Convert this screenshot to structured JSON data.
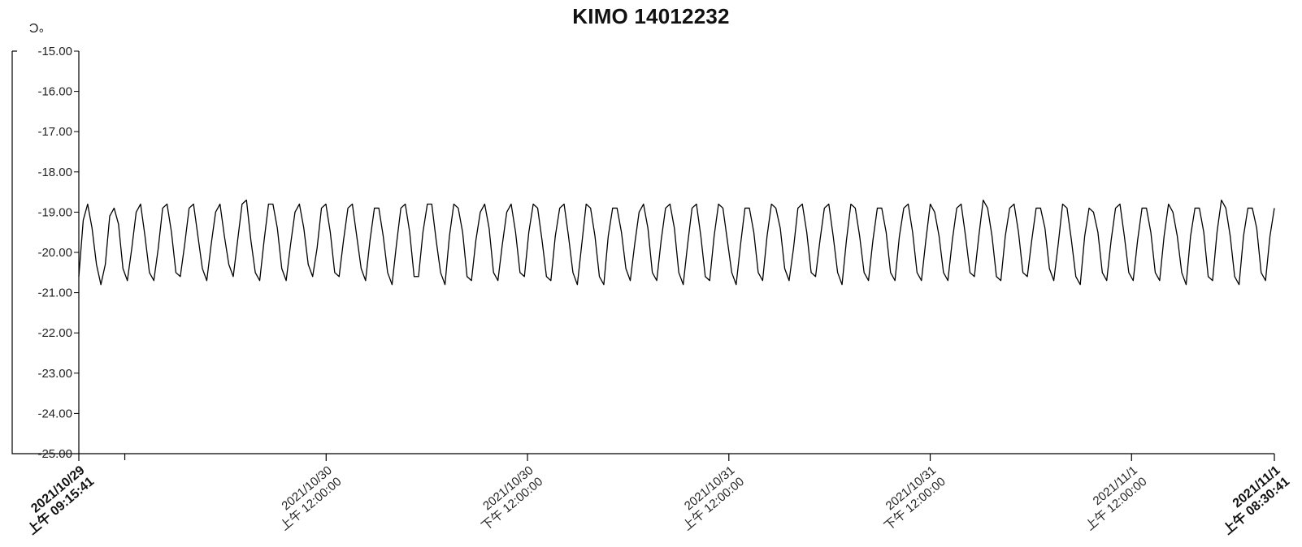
{
  "chart_data": {
    "type": "line",
    "title": "KIMO 14012232",
    "ylabel": "°C",
    "xlabel": "",
    "ylim": [
      -25.0,
      -15.0
    ],
    "yticks": [
      "-15.00",
      "-16.00",
      "-17.00",
      "-18.00",
      "-19.00",
      "-20.00",
      "-21.00",
      "-22.00",
      "-23.00",
      "-24.00",
      "-25.00"
    ],
    "x_range": [
      "2021-10-29T09:15:41",
      "2021-11-01T08:30:41"
    ],
    "x_tick_labels": [
      {
        "t": "2021-10-29T09:15:41",
        "line1": "2021/10/29",
        "line2": "上午 09:15:41",
        "bold": true
      },
      {
        "t": "2021-10-30T00:00:00",
        "line1": "2021/10/30",
        "line2": "上午 12:00:00",
        "bold": false
      },
      {
        "t": "2021-10-30T12:00:00",
        "line1": "2021/10/30",
        "line2": "下午 12:00:00",
        "bold": false
      },
      {
        "t": "2021-10-31T00:00:00",
        "line1": "2021/10/31",
        "line2": "上午 12:00:00",
        "bold": false
      },
      {
        "t": "2021-10-31T12:00:00",
        "line1": "2021/10/31",
        "line2": "下午 12:00:00",
        "bold": false
      },
      {
        "t": "2021-11-01T00:00:00",
        "line1": "2021/11/1",
        "line2": "上午 12:00:00",
        "bold": false
      },
      {
        "t": "2021-11-01T08:30:41",
        "line1": "2021/11/1",
        "line2": "上午 08:30:41",
        "bold": true
      }
    ],
    "minor_ticks": [
      "2021-10-29T12:00:00"
    ],
    "grid": false,
    "series": [
      {
        "color": "#000000",
        "y": [
          -20.6,
          -19.2,
          -18.8,
          -19.4,
          -20.3,
          -20.8,
          -20.3,
          -19.1,
          -18.9,
          -19.3,
          -20.4,
          -20.7,
          -19.9,
          -19.0,
          -18.8,
          -19.6,
          -20.5,
          -20.7,
          -19.9,
          -18.9,
          -18.8,
          -19.5,
          -20.5,
          -20.6,
          -19.8,
          -18.9,
          -18.8,
          -19.6,
          -20.4,
          -20.7,
          -19.8,
          -19.0,
          -18.8,
          -19.6,
          -20.3,
          -20.6,
          -19.7,
          -18.8,
          -18.7,
          -19.7,
          -20.5,
          -20.7,
          -19.7,
          -18.8,
          -18.8,
          -19.4,
          -20.4,
          -20.7,
          -19.8,
          -19.0,
          -18.8,
          -19.4,
          -20.3,
          -20.6,
          -19.9,
          -18.9,
          -18.8,
          -19.5,
          -20.5,
          -20.6,
          -19.7,
          -18.9,
          -18.8,
          -19.6,
          -20.4,
          -20.7,
          -19.7,
          -18.9,
          -18.9,
          -19.6,
          -20.5,
          -20.8,
          -19.8,
          -18.9,
          -18.8,
          -19.5,
          -20.6,
          -20.6,
          -19.5,
          -18.8,
          -18.8,
          -19.7,
          -20.5,
          -20.8,
          -19.6,
          -18.8,
          -18.9,
          -19.5,
          -20.6,
          -20.7,
          -19.7,
          -19.0,
          -18.8,
          -19.4,
          -20.5,
          -20.7,
          -19.8,
          -19.0,
          -18.8,
          -19.5,
          -20.5,
          -20.6,
          -19.5,
          -18.8,
          -18.9,
          -19.7,
          -20.6,
          -20.7,
          -19.6,
          -18.9,
          -18.8,
          -19.6,
          -20.5,
          -20.8,
          -19.8,
          -18.8,
          -18.9,
          -19.6,
          -20.6,
          -20.8,
          -19.6,
          -18.9,
          -18.9,
          -19.5,
          -20.4,
          -20.7,
          -19.8,
          -19.0,
          -18.8,
          -19.4,
          -20.5,
          -20.7,
          -19.7,
          -18.9,
          -18.8,
          -19.4,
          -20.5,
          -20.8,
          -19.8,
          -18.9,
          -18.8,
          -19.6,
          -20.6,
          -20.7,
          -19.6,
          -18.8,
          -18.9,
          -19.7,
          -20.5,
          -20.8,
          -19.8,
          -18.9,
          -18.9,
          -19.5,
          -20.5,
          -20.7,
          -19.6,
          -18.8,
          -18.9,
          -19.4,
          -20.4,
          -20.7,
          -19.9,
          -18.9,
          -18.8,
          -19.5,
          -20.5,
          -20.6,
          -19.7,
          -18.9,
          -18.8,
          -19.6,
          -20.5,
          -20.8,
          -19.7,
          -18.8,
          -18.9,
          -19.6,
          -20.5,
          -20.7,
          -19.7,
          -18.9,
          -18.9,
          -19.5,
          -20.5,
          -20.7,
          -19.6,
          -18.9,
          -18.8,
          -19.5,
          -20.5,
          -20.7,
          -19.7,
          -18.8,
          -19.0,
          -19.6,
          -20.5,
          -20.7,
          -19.7,
          -18.9,
          -18.8,
          -19.6,
          -20.5,
          -20.6,
          -19.6,
          -18.7,
          -18.9,
          -19.6,
          -20.6,
          -20.7,
          -19.6,
          -18.9,
          -18.8,
          -19.5,
          -20.5,
          -20.6,
          -19.7,
          -18.9,
          -18.9,
          -19.4,
          -20.4,
          -20.7,
          -19.8,
          -18.8,
          -18.9,
          -19.7,
          -20.6,
          -20.8,
          -19.6,
          -18.9,
          -19.0,
          -19.5,
          -20.5,
          -20.7,
          -19.7,
          -18.9,
          -18.8,
          -19.6,
          -20.5,
          -20.7,
          -19.7,
          -18.9,
          -18.9,
          -19.5,
          -20.5,
          -20.7,
          -19.6,
          -18.8,
          -19.0,
          -19.6,
          -20.5,
          -20.8,
          -19.6,
          -18.9,
          -18.9,
          -19.5,
          -20.6,
          -20.7,
          -19.5,
          -18.7,
          -18.9,
          -19.6,
          -20.6,
          -20.8,
          -19.6,
          -18.9,
          -18.9,
          -19.4,
          -20.5,
          -20.7,
          -19.6,
          -18.9
        ]
      }
    ]
  }
}
